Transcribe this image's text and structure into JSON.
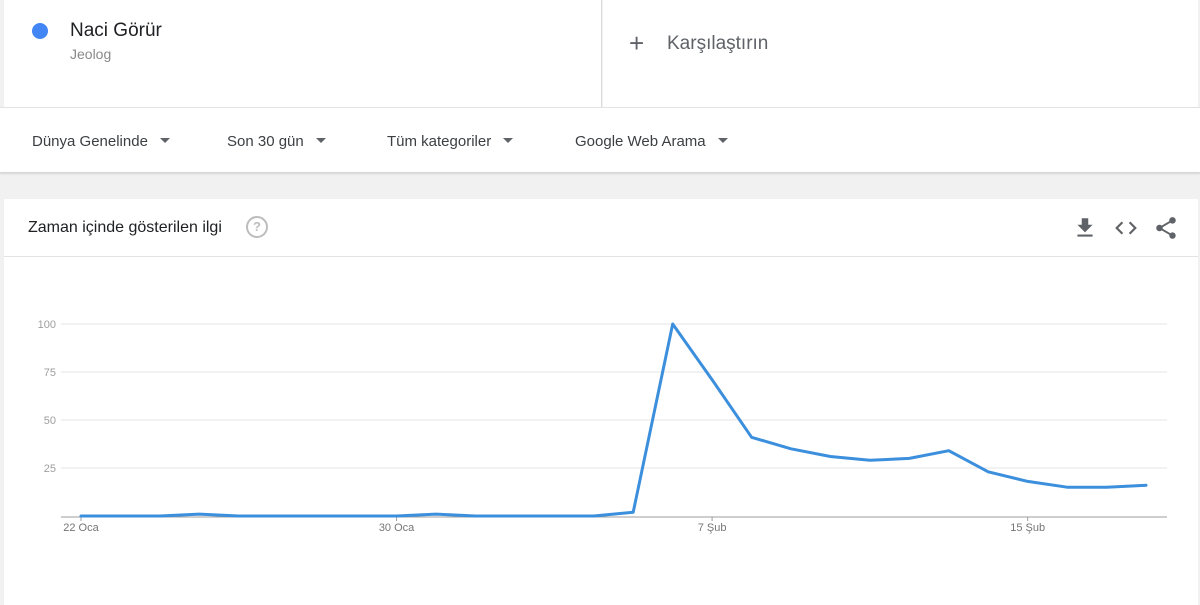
{
  "term": {
    "name": "Naci Görür",
    "type": "Jeolog",
    "color": "#4285f4"
  },
  "compare": {
    "label": "Karşılaştırın"
  },
  "filters": [
    {
      "label": "Dünya Genelinde"
    },
    {
      "label": "Son 30 gün"
    },
    {
      "label": "Tüm kategoriler"
    },
    {
      "label": "Google Web Arama"
    }
  ],
  "chart_header": {
    "title": "Zaman içinde gösterilen ilgi",
    "help_icon": "question-circle-icon",
    "actions": [
      "download-icon",
      "embed-code-icon",
      "share-icon"
    ]
  },
  "chart_data": {
    "type": "line",
    "title": "",
    "xlabel": "",
    "ylabel": "",
    "ylim": [
      0,
      100
    ],
    "yticks": [
      25,
      50,
      75,
      100
    ],
    "grid": true,
    "line_color": "#3b8fdc",
    "x": [
      "22 Oca",
      "23 Oca",
      "24 Oca",
      "25 Oca",
      "26 Oca",
      "27 Oca",
      "28 Oca",
      "29 Oca",
      "30 Oca",
      "31 Oca",
      "1 Şub",
      "2 Şub",
      "3 Şub",
      "4 Şub",
      "5 Şub",
      "6 Şub",
      "7 Şub",
      "8 Şub",
      "9 Şub",
      "10 Şub",
      "11 Şub",
      "12 Şub",
      "13 Şub",
      "14 Şub",
      "15 Şub",
      "16 Şub",
      "17 Şub",
      "18 Şub"
    ],
    "x_tick_labels": [
      {
        "label": "22 Oca",
        "index": 0
      },
      {
        "label": "30 Oca",
        "index": 8
      },
      {
        "label": "7 Şub",
        "index": 16
      },
      {
        "label": "15 Şub",
        "index": 24
      }
    ],
    "values": [
      0,
      0,
      0,
      1,
      0,
      0,
      0,
      0,
      0,
      1,
      0,
      0,
      0,
      0,
      2,
      100,
      71,
      41,
      35,
      31,
      29,
      30,
      34,
      23,
      18,
      15,
      15,
      16
    ]
  }
}
